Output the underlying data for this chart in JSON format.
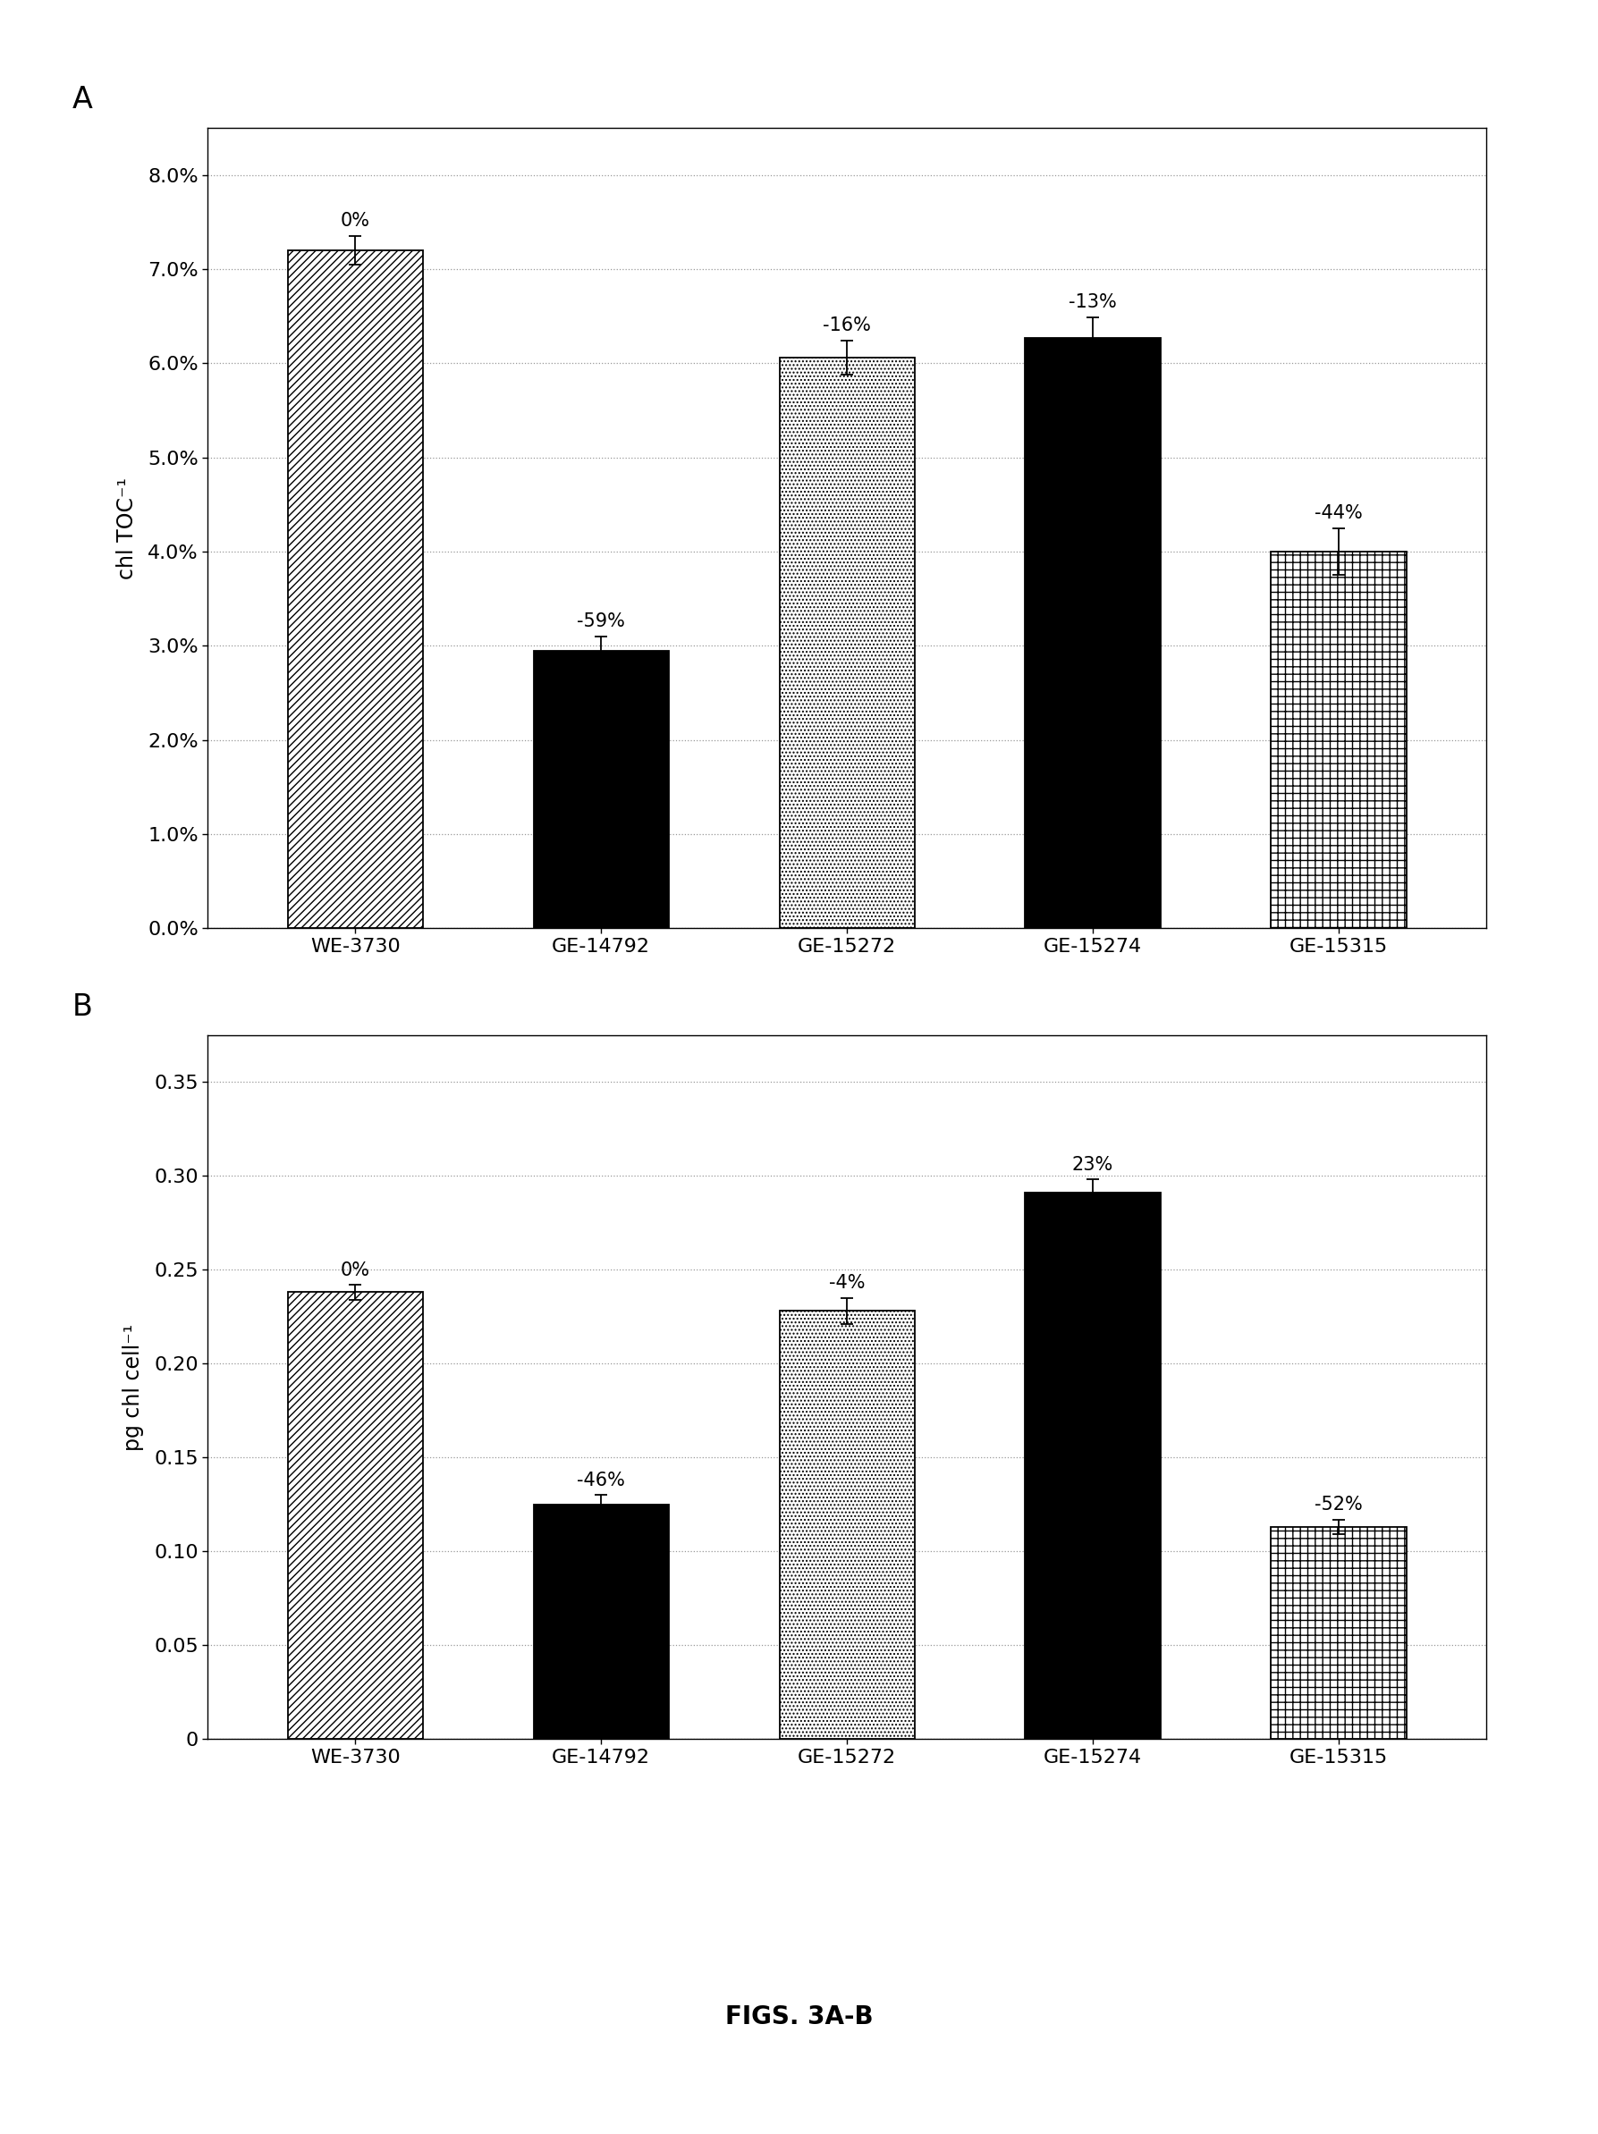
{
  "panel_A": {
    "categories": [
      "WE-3730",
      "GE-14792",
      "GE-15272",
      "GE-15274",
      "GE-15315"
    ],
    "values": [
      0.072,
      0.0295,
      0.0606,
      0.0627,
      0.04
    ],
    "errors": [
      0.0015,
      0.0015,
      0.0018,
      0.0022,
      0.0025
    ],
    "labels": [
      "0%",
      "-59%",
      "-16%",
      "-13%",
      "-44%"
    ],
    "ylabel": "chl TOC⁻¹",
    "ylim": [
      0,
      0.085
    ],
    "yticks": [
      0.0,
      0.01,
      0.02,
      0.03,
      0.04,
      0.05,
      0.06,
      0.07,
      0.08
    ],
    "ytick_labels": [
      "0.0%",
      "1.0%",
      "2.0%",
      "3.0%",
      "4.0%",
      "5.0%",
      "6.0%",
      "7.0%",
      "8.0%"
    ],
    "panel_label": "A"
  },
  "panel_B": {
    "categories": [
      "WE-3730",
      "GE-14792",
      "GE-15272",
      "GE-15274",
      "GE-15315"
    ],
    "values": [
      0.238,
      0.125,
      0.228,
      0.291,
      0.113
    ],
    "errors": [
      0.004,
      0.005,
      0.007,
      0.007,
      0.004
    ],
    "labels": [
      "0%",
      "-46%",
      "-4%",
      "23%",
      "-52%"
    ],
    "ylabel": "pg chl cell⁻¹",
    "ylim": [
      0,
      0.375
    ],
    "yticks": [
      0.0,
      0.05,
      0.1,
      0.15,
      0.2,
      0.25,
      0.3,
      0.35
    ],
    "ytick_labels": [
      "0",
      "0.05",
      "0.10",
      "0.15",
      "0.20",
      "0.25",
      "0.30",
      "0.35"
    ],
    "panel_label": "B"
  },
  "figure_label": "FIGS. 3A-B",
  "background_color": "#ffffff",
  "grid_color": "#999999",
  "fontsize_ticks": 16,
  "fontsize_label": 17,
  "fontsize_annot": 15,
  "fontsize_panel": 24,
  "fontsize_figure_label": 20
}
